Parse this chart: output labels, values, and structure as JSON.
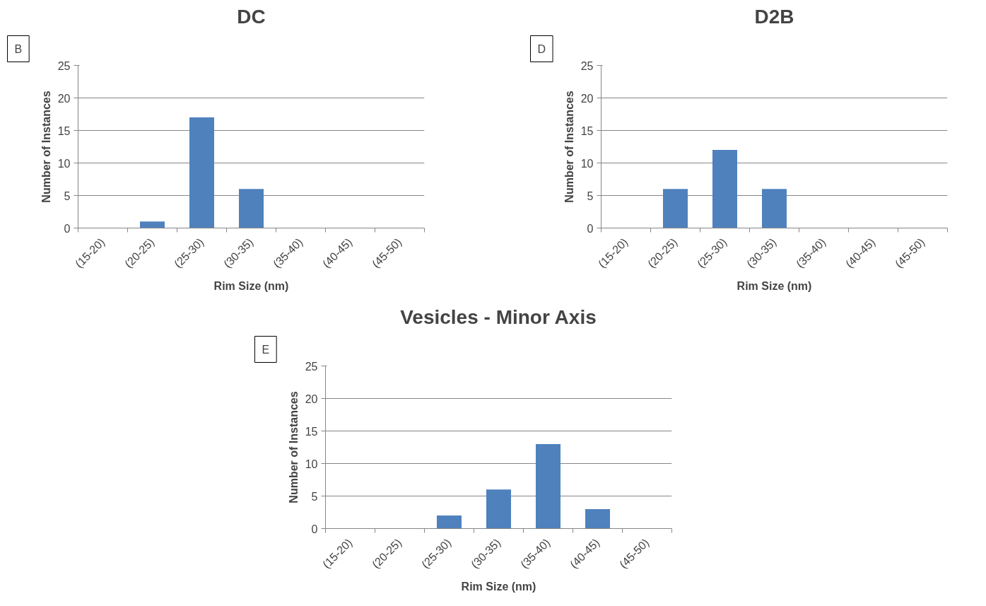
{
  "chart_data": [
    {
      "type": "bar",
      "title": "DC",
      "xlabel": "Rim Size (nm)",
      "ylabel": "Number of Instances",
      "annotations": [
        "B"
      ],
      "categories": [
        "(15-20)",
        "(20-25)",
        "(25-30)",
        "(30-35)",
        "(35-40)",
        "(40-45)",
        "(45-50)"
      ],
      "values": [
        0,
        1,
        17,
        6,
        0,
        0,
        0
      ],
      "color": "#4f81bd",
      "ylim": [
        0,
        25
      ],
      "yticks": [
        0,
        5,
        10,
        15,
        20,
        25
      ],
      "grid": "y"
    },
    {
      "type": "bar",
      "title": "D2B",
      "xlabel": "Rim Size (nm)",
      "ylabel": "Number of Instances",
      "annotations": [
        "D"
      ],
      "categories": [
        "(15-20)",
        "(20-25)",
        "(25-30)",
        "(30-35)",
        "(35-40)",
        "(40-45)",
        "(45-50)"
      ],
      "values": [
        0,
        6,
        12,
        6,
        0,
        0,
        0
      ],
      "color": "#4f81bd",
      "ylim": [
        0,
        25
      ],
      "yticks": [
        0,
        5,
        10,
        15,
        20,
        25
      ],
      "grid": "y"
    },
    {
      "type": "bar",
      "title": "Vesicles - Minor Axis",
      "xlabel": "Rim Size (nm)",
      "ylabel": "Number of Instances",
      "annotations": [
        "E"
      ],
      "categories": [
        "(15-20)",
        "(20-25)",
        "(25-30)",
        "(30-35)",
        "(35-40)",
        "(40-45)",
        "(45-50)"
      ],
      "values": [
        0,
        0,
        2,
        6,
        13,
        3,
        0
      ],
      "color": "#4f81bd",
      "ylim": [
        0,
        25
      ],
      "yticks": [
        0,
        5,
        10,
        15,
        20,
        25
      ],
      "grid": "y"
    }
  ]
}
